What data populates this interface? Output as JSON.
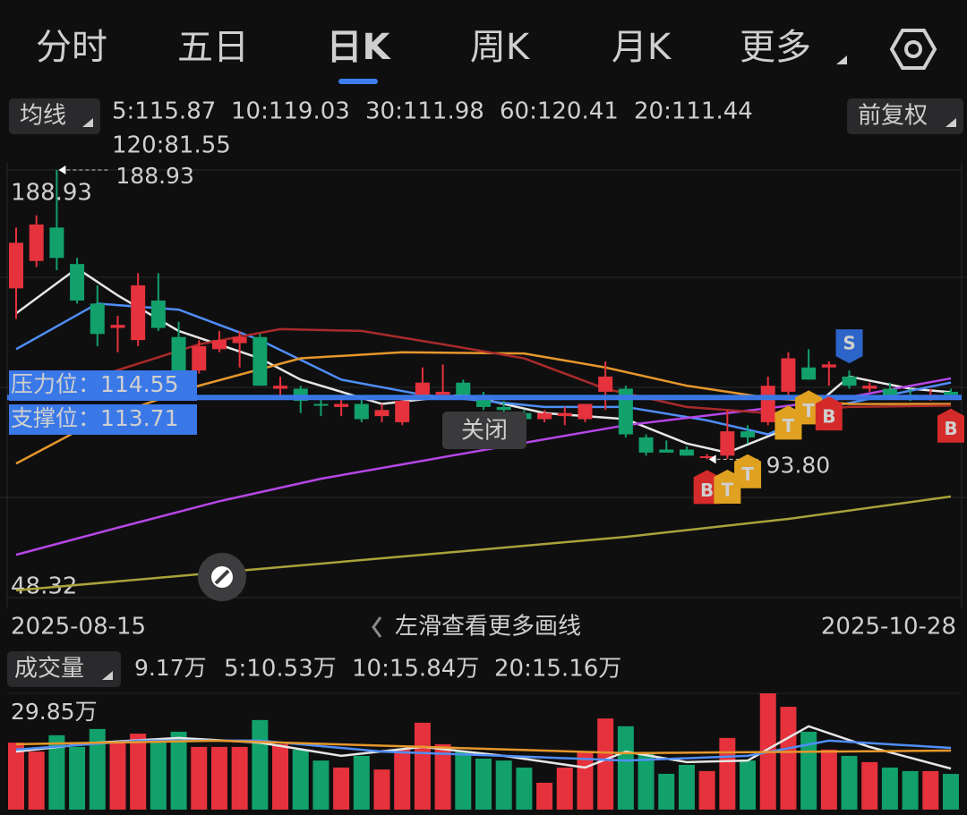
{
  "tabs": [
    "分时",
    "五日",
    "日K",
    "周K",
    "月K",
    "更多"
  ],
  "selected_tab": 2,
  "ma_button": "均线",
  "adjust_button": "前复权",
  "close_button": "关闭",
  "hint": "左滑查看更多画线",
  "chart_data": {
    "type": "candlestick",
    "ylim": [
      48.32,
      188.93
    ],
    "yticks": [
      188.93,
      48.32
    ],
    "categories": [
      "2025-08-15",
      null,
      null,
      null,
      null,
      null,
      null,
      null,
      null,
      null,
      null,
      null,
      null,
      null,
      null,
      null,
      null,
      null,
      null,
      null,
      null,
      null,
      null,
      null,
      null,
      null,
      null,
      null,
      null,
      null,
      null,
      null,
      null,
      null,
      null,
      null,
      null,
      null,
      null,
      null,
      null,
      null,
      null,
      null,
      null,
      null,
      "2025-10-28"
    ],
    "up_color": "#e5323c",
    "down_color": "#12a06b",
    "open": [
      150,
      159,
      170,
      158,
      145,
      137,
      133,
      146,
      134,
      123,
      130,
      132,
      134,
      117,
      117,
      112,
      111,
      112,
      108,
      106,
      115,
      115,
      119,
      115,
      111,
      109,
      107,
      108,
      107,
      116,
      117,
      101,
      97,
      97,
      94.3,
      95,
      103,
      106,
      116,
      124,
      124,
      121,
      117,
      117,
      115,
      114,
      116
    ],
    "high": [
      170,
      174,
      188.93,
      160,
      151,
      141,
      155,
      155,
      139,
      133,
      136,
      136,
      135,
      121,
      118,
      115,
      115,
      114,
      112,
      114,
      124,
      125,
      120,
      116,
      113,
      110,
      110,
      111,
      112,
      126,
      118,
      102,
      100,
      98,
      95.5,
      110,
      105,
      121,
      129,
      130,
      126,
      123,
      119,
      119,
      117,
      117,
      117
    ],
    "low": [
      140,
      157,
      156,
      145,
      131,
      129,
      131,
      136,
      123,
      122,
      129,
      124,
      118,
      114,
      109,
      108,
      108,
      106,
      106,
      105,
      114,
      114,
      114,
      110,
      109,
      106,
      106,
      105,
      106,
      110,
      101,
      95,
      96,
      95,
      93.8,
      93.9,
      99,
      105,
      115,
      120,
      118,
      117,
      116,
      114,
      113,
      113,
      114
    ],
    "close": [
      165,
      171,
      160,
      146,
      135,
      138,
      151,
      137,
      123,
      131,
      133,
      134,
      118,
      118,
      113,
      111.7,
      112,
      107,
      110,
      113,
      119,
      116,
      115,
      111,
      110,
      107,
      109,
      109,
      112,
      121,
      102,
      96,
      96,
      95,
      94.8,
      103,
      101,
      118,
      127,
      120,
      125,
      118,
      118,
      114,
      114,
      115,
      115
    ],
    "series": [
      {
        "name": "5:115.87",
        "color": "#e6e6e6",
        "x": [
          0,
          3,
          5,
          8,
          12,
          14,
          18,
          22,
          26,
          30,
          33,
          35,
          38,
          41,
          44,
          46
        ],
        "values": [
          141.8,
          156.6,
          147.7,
          136,
          127,
          120,
          112,
          115,
          109,
          107,
          99,
          96,
          104,
          121,
          117,
          115.87
        ]
      },
      {
        "name": "10:119.03",
        "color": "#4f8ef7",
        "x": [
          0,
          4,
          8,
          12,
          16,
          20,
          26,
          30,
          34,
          37,
          40,
          43,
          46
        ],
        "values": [
          130,
          145,
          143,
          133,
          120,
          115,
          111,
          111,
          106.6,
          102,
          111,
          115,
          119.03
        ]
      },
      {
        "name": "30:111.98",
        "color": "#e6972b",
        "x": [
          0,
          4,
          9,
          14,
          19,
          25,
          29,
          33,
          37,
          41,
          46
        ],
        "values": [
          92.4,
          106.6,
          118,
          127,
          129,
          128.6,
          124,
          118,
          114,
          112,
          111.98
        ]
      },
      {
        "name": "60:120.41",
        "color": "#b646e6",
        "x": [
          0,
          5,
          10,
          15,
          20,
          25,
          30,
          35,
          40,
          46
        ],
        "values": [
          62.4,
          71.3,
          80,
          87.4,
          93.3,
          99.2,
          105,
          109,
          113,
          120.41
        ]
      },
      {
        "name": "20:111.44",
        "color": "#a92a2a",
        "x": [
          4,
          9,
          13,
          17,
          21,
          25,
          29,
          33,
          37,
          41,
          46
        ],
        "values": [
          121,
          131.6,
          136.6,
          136,
          131.6,
          127,
          117,
          111,
          109,
          111,
          111.44
        ]
      },
      {
        "name": "120:81.55",
        "color": "#a9a33a",
        "x": [
          0,
          10,
          20,
          30,
          38,
          46
        ],
        "values": [
          50.7,
          56.6,
          62.4,
          68.3,
          74.2,
          81.55
        ]
      }
    ],
    "levels": [
      {
        "label": "压力位：114.55",
        "value": 114.55,
        "color": "#3a78e8"
      },
      {
        "label": "支撑位：113.71",
        "value": 113.71,
        "color": "#3a78e8"
      }
    ],
    "annotations": [
      {
        "text": "188.93",
        "index": 2,
        "at": "high"
      },
      {
        "text": "93.80",
        "index": 34,
        "at": "low"
      }
    ],
    "trade_marks": [
      {
        "label": "B",
        "index": 34,
        "color": "#d42a2a"
      },
      {
        "label": "T",
        "index": 35,
        "color": "#e0a020"
      },
      {
        "label": "T",
        "index": 36,
        "color": "#e0a020"
      },
      {
        "label": "T",
        "index": 38,
        "color": "#e0a020"
      },
      {
        "label": "T",
        "index": 39,
        "color": "#e0a020"
      },
      {
        "label": "B",
        "index": 40,
        "color": "#d42a2a"
      },
      {
        "label": "S",
        "index": 41,
        "color": "#2d64c8",
        "above": true
      },
      {
        "label": "B",
        "index": 46,
        "color": "#d42a2a"
      }
    ]
  },
  "volume_chart": {
    "type": "bar",
    "title": "成交量",
    "current": "9.17万",
    "ylim": [
      0,
      29.85
    ],
    "yticks": [
      {
        "value": 29.85,
        "label": "29.85万"
      }
    ],
    "values": [
      17.2,
      14.9,
      19.1,
      16.1,
      20.7,
      17.2,
      19.5,
      17.2,
      20,
      16.1,
      16.1,
      16.1,
      23,
      16.8,
      15.4,
      12.6,
      10.8,
      13.8,
      10.3,
      15.4,
      22.3,
      16.8,
      14.9,
      13.1,
      12.6,
      10.8,
      6.9,
      10.8,
      14.9,
      23.4,
      21.4,
      14.5,
      9.2,
      11.5,
      9.9,
      18.4,
      12.6,
      29.85,
      26.4,
      20,
      15.4,
      13.8,
      12.2,
      10.8,
      9.9,
      9.9,
      9.17
    ],
    "series": [
      {
        "name": "5:10.53万",
        "color": "#e6e6e6",
        "x": [
          0,
          4,
          8,
          12,
          16,
          20,
          24,
          28,
          30,
          33,
          36,
          39,
          42,
          46
        ],
        "values": [
          14.9,
          17.2,
          18.4,
          17.2,
          13.8,
          16.1,
          13.8,
          10.8,
          14.9,
          12.2,
          12.6,
          21.4,
          16.1,
          10.53
        ]
      },
      {
        "name": "10:15.84万",
        "color": "#4f8ef7",
        "x": [
          0,
          6,
          12,
          18,
          24,
          30,
          36,
          40,
          46
        ],
        "values": [
          15.4,
          17.7,
          17.7,
          14.9,
          13.8,
          12.6,
          13.8,
          17.7,
          15.84
        ]
      },
      {
        "name": "20:15.16万",
        "color": "#e6972b",
        "x": [
          0,
          10,
          20,
          30,
          40,
          46
        ],
        "values": [
          16.8,
          17.7,
          16.1,
          14.5,
          14.9,
          15.16
        ]
      }
    ]
  }
}
